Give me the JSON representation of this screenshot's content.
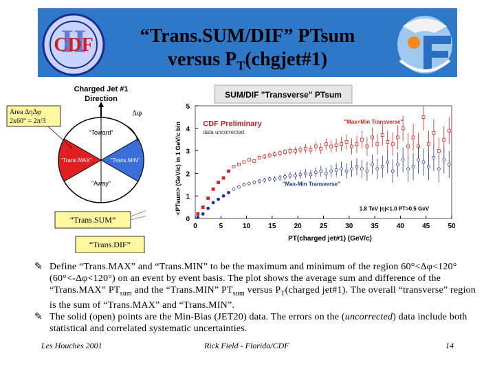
{
  "slide": {
    "title_line1": "“Trans.SUM/DIF” PTsum",
    "title_line2_pre": "versus P",
    "title_line2_sub": "T",
    "title_line2_post": "(chgjet#1)",
    "banner_color": "#2f78c8"
  },
  "logos": {
    "left_text": "CDF",
    "left_roman": "II",
    "right_icon": "les-houches-logo"
  },
  "diagram": {
    "heading_line1": "Charged Jet #1",
    "heading_line2": "Direction",
    "toward": "“Toward”",
    "away": "“Away”",
    "transmax": "“Trans.MAX”",
    "transmin": "“Trans.MIN”",
    "dphi": "Δφ",
    "area_line1": "Area  ΔηΔφ",
    "area_line2": "2x60° = 2π/3",
    "sum_label": "“Trans.SUM”",
    "dif_label": "“Trans.DIF”",
    "colors": {
      "max": "#e02020",
      "min": "#3a6fd8"
    }
  },
  "chart_data": {
    "type": "scatter",
    "title": "SUM/DIF \"Transverse\" PTsum",
    "xlabel": "PT(charged jet#1)  (GeV/c)",
    "ylabel": "<PTsum> (GeV/c) in 1 GeV/c bin",
    "xlim": [
      0,
      50
    ],
    "ylim": [
      0,
      5
    ],
    "xticks": [
      0,
      5,
      10,
      15,
      20,
      25,
      30,
      35,
      40,
      45,
      50
    ],
    "yticks": [
      0,
      1,
      2,
      3,
      4,
      5
    ],
    "preliminary": "CDF Preliminary",
    "preliminary_sub": "data uncorrected",
    "cut_note": "1.8 TeV |η|<1.0 PT>0.5 GeV",
    "legend_position": "top-right",
    "series": [
      {
        "name": "\"Max+Min Transverse\"",
        "color": "#e02020",
        "x": [
          0.5,
          1.5,
          2.5,
          3.5,
          4.5,
          5.5,
          6.5,
          7.5,
          8.5,
          9.5,
          10.5,
          11.5,
          12.5,
          13.5,
          14.5,
          15.5,
          16.5,
          17.5,
          18.5,
          19.5,
          20.5,
          21.5,
          22.5,
          23.5,
          24.5,
          25.5,
          26.5,
          27.5,
          28.5,
          29.5,
          30.5,
          31.5,
          32.5,
          33.5,
          34.5,
          35.5,
          36.5,
          37.5,
          38.5,
          39.5,
          40.5,
          41.5,
          42.5,
          43.5,
          44.5,
          45.5,
          46.5,
          47.5,
          48.5,
          49.5
        ],
        "y": [
          0.2,
          0.5,
          0.9,
          1.3,
          1.6,
          1.8,
          2.1,
          2.3,
          2.4,
          2.5,
          2.6,
          2.55,
          2.7,
          2.75,
          2.8,
          2.85,
          2.9,
          2.95,
          3.0,
          3.0,
          3.05,
          3.1,
          3.05,
          3.2,
          3.1,
          3.3,
          3.2,
          3.25,
          3.3,
          3.4,
          3.2,
          3.3,
          3.5,
          3.2,
          3.6,
          3.3,
          3.7,
          3.4,
          3.3,
          3.6,
          4.0,
          3.2,
          3.6,
          3.2,
          4.5,
          3.3,
          3.8,
          3.0,
          3.5,
          3.9
        ],
        "err": [
          0.02,
          0.02,
          0.02,
          0.02,
          0.03,
          0.03,
          0.04,
          0.05,
          0.06,
          0.07,
          0.08,
          0.09,
          0.1,
          0.11,
          0.12,
          0.13,
          0.14,
          0.15,
          0.16,
          0.17,
          0.18,
          0.19,
          0.2,
          0.22,
          0.24,
          0.26,
          0.28,
          0.3,
          0.32,
          0.34,
          0.36,
          0.38,
          0.4,
          0.42,
          0.44,
          0.46,
          0.48,
          0.5,
          0.52,
          0.54,
          0.56,
          0.58,
          0.6,
          0.6,
          0.6,
          0.6,
          0.6,
          0.6,
          0.6,
          0.6
        ],
        "solid_until": 7
      },
      {
        "name": "\"Max-Min Transverse\"",
        "color": "#2030a0",
        "x": [
          0.5,
          1.5,
          2.5,
          3.5,
          4.5,
          5.5,
          6.5,
          7.5,
          8.5,
          9.5,
          10.5,
          11.5,
          12.5,
          13.5,
          14.5,
          15.5,
          16.5,
          17.5,
          18.5,
          19.5,
          20.5,
          21.5,
          22.5,
          23.5,
          24.5,
          25.5,
          26.5,
          27.5,
          28.5,
          29.5,
          30.5,
          31.5,
          32.5,
          33.5,
          34.5,
          35.5,
          36.5,
          37.5,
          38.5,
          39.5,
          40.5,
          41.5,
          42.5,
          43.5,
          44.5,
          45.5,
          46.5,
          47.5,
          48.5,
          49.5
        ],
        "y": [
          0.05,
          0.2,
          0.45,
          0.7,
          0.85,
          1.0,
          1.15,
          1.3,
          1.4,
          1.5,
          1.55,
          1.6,
          1.65,
          1.7,
          1.75,
          1.75,
          1.8,
          1.85,
          1.9,
          1.9,
          1.95,
          2.0,
          1.95,
          2.05,
          2.1,
          2.0,
          2.1,
          2.15,
          2.2,
          2.1,
          2.2,
          2.3,
          2.2,
          2.1,
          2.4,
          2.2,
          2.3,
          2.5,
          2.1,
          2.4,
          2.6,
          2.2,
          2.3,
          2.6,
          2.5,
          2.3,
          2.7,
          2.2,
          2.6,
          2.4
        ],
        "err": [
          0.02,
          0.02,
          0.02,
          0.02,
          0.03,
          0.03,
          0.04,
          0.05,
          0.06,
          0.07,
          0.08,
          0.09,
          0.1,
          0.11,
          0.12,
          0.13,
          0.14,
          0.15,
          0.16,
          0.17,
          0.18,
          0.19,
          0.2,
          0.22,
          0.24,
          0.26,
          0.28,
          0.3,
          0.32,
          0.34,
          0.36,
          0.38,
          0.4,
          0.42,
          0.44,
          0.46,
          0.48,
          0.5,
          0.52,
          0.54,
          0.56,
          0.58,
          0.6,
          0.6,
          0.6,
          0.6,
          0.6,
          0.6,
          0.6,
          0.6
        ],
        "solid_until": 7
      }
    ]
  },
  "text": {
    "bullet1_a": "Define “Trans.MAX” and “Trans.MIN” to be the maximum and minimum of the region 60°<Δφ<120° (60°<-Δφ<120°) on an event by event basis. The plot shows the average sum and difference of the “Trans.MAX” PT",
    "bullet1_sub1": "sum",
    "bullet1_b": " and the “Trans.MIN” PT",
    "bullet1_sub2": "sum",
    "bullet1_c": " versus P",
    "bullet1_sub3": "T",
    "bullet1_d": "(charged jet#1). The overall “transverse” region is the sum of “Trans.MAX” and “Trans.MIN”.",
    "bullet2_a": "The solid (open) points are the Min-Bias (JET20) data. The errors on the (",
    "bullet2_em": "uncorrected",
    "bullet2_b": ") data include both statistical and correlated systematic uncertainties.",
    "bullet_icon": "pen-bullet-icon"
  },
  "footer": {
    "left": "Les Houches 2001",
    "middle": "Rick Field - Florida/CDF",
    "page": "14"
  }
}
